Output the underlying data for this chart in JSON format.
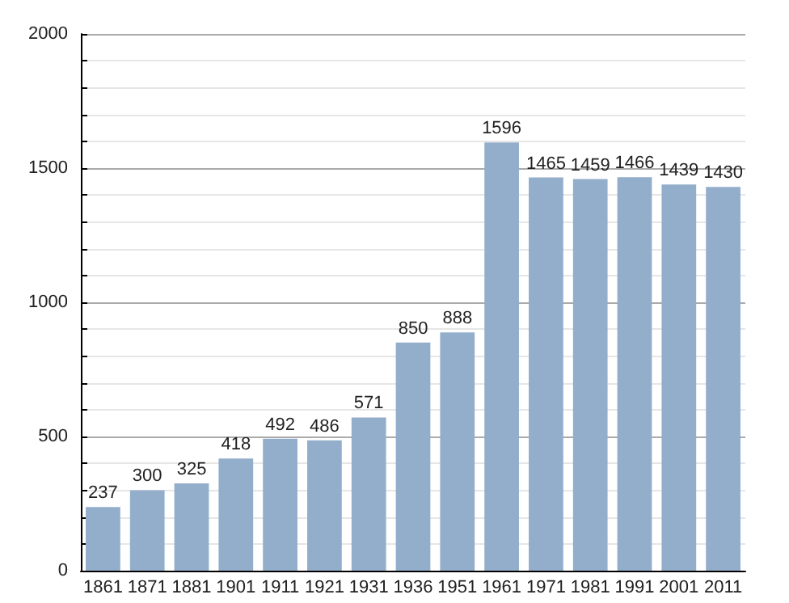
{
  "chart_data": {
    "type": "bar",
    "categories": [
      "1861",
      "1871",
      "1881",
      "1901",
      "1911",
      "1921",
      "1931",
      "1936",
      "1951",
      "1961",
      "1971",
      "1981",
      "1991",
      "2001",
      "2011"
    ],
    "values": [
      237,
      300,
      325,
      418,
      492,
      486,
      571,
      850,
      888,
      1596,
      1465,
      1459,
      1466,
      1439,
      1430
    ],
    "color": "#93aecb",
    "ylim": [
      0,
      2000
    ],
    "yticks": [
      0,
      {
        "value": 100,
        "label": null
      },
      {
        "value": 200,
        "label": null
      },
      {
        "value": 300,
        "label": null
      },
      {
        "value": 400,
        "label": null
      },
      500,
      {
        "value": 600,
        "label": null
      },
      {
        "value": 700,
        "label": null
      },
      {
        "value": 800,
        "label": null
      },
      {
        "value": 900,
        "label": null
      },
      1000,
      {
        "value": 1100,
        "label": null
      },
      {
        "value": 1200,
        "label": null
      },
      {
        "value": 1300,
        "label": null
      },
      {
        "value": 1400,
        "label": null
      },
      1500,
      {
        "value": 1600,
        "label": null
      },
      {
        "value": 1700,
        "label": null
      },
      {
        "value": 1800,
        "label": null
      },
      {
        "value": 1900,
        "label": null
      },
      2000
    ],
    "grid": true,
    "data_labels": true
  }
}
